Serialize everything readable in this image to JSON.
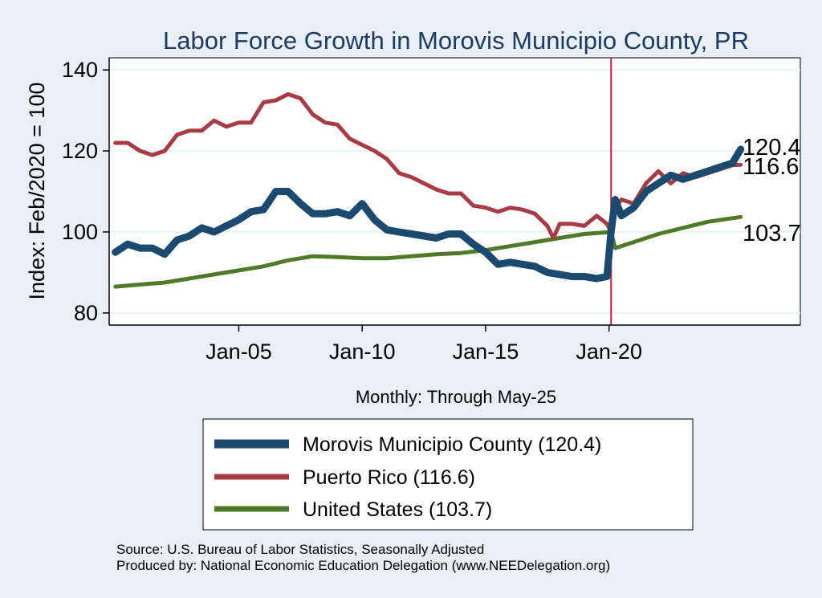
{
  "chart_data": {
    "type": "line",
    "title": "Labor Force Growth in Morovis Municipio  County, PR",
    "xlabel": "Monthly: Through May-25",
    "ylabel": "Index: Feb/2020 = 100",
    "x_start": "2000-01",
    "x_end": "2025-05",
    "xlim": [
      "1999-10",
      "2027-10"
    ],
    "ylim": [
      77,
      143
    ],
    "x_ticks": [
      {
        "date": "2005-01",
        "label": "Jan-05"
      },
      {
        "date": "2010-01",
        "label": "Jan-10"
      },
      {
        "date": "2015-01",
        "label": "Jan-15"
      },
      {
        "date": "2020-01",
        "label": "Jan-20"
      }
    ],
    "y_ticks": [
      80,
      100,
      120,
      140
    ],
    "reference_line": {
      "date": "2020-02",
      "color": "#c0203a"
    },
    "grid": true,
    "legend_placement": "bottom",
    "series": [
      {
        "name": "Morovis Municipio  County (120.4)",
        "end_label": "120.4",
        "color": "#1b4a6e",
        "width": 9,
        "points": [
          [
            "2000-01",
            95
          ],
          [
            "2000-07",
            97
          ],
          [
            "2001-01",
            96
          ],
          [
            "2001-07",
            96
          ],
          [
            "2002-01",
            94.5
          ],
          [
            "2002-07",
            98
          ],
          [
            "2003-01",
            99
          ],
          [
            "2003-07",
            101
          ],
          [
            "2004-01",
            100
          ],
          [
            "2004-07",
            101.5
          ],
          [
            "2005-01",
            103
          ],
          [
            "2005-07",
            105
          ],
          [
            "2006-01",
            105.5
          ],
          [
            "2006-07",
            110
          ],
          [
            "2007-01",
            110
          ],
          [
            "2007-07",
            107
          ],
          [
            "2008-01",
            104.5
          ],
          [
            "2008-07",
            104.5
          ],
          [
            "2009-01",
            105
          ],
          [
            "2009-07",
            104
          ],
          [
            "2010-01",
            107
          ],
          [
            "2010-07",
            103
          ],
          [
            "2011-01",
            100.5
          ],
          [
            "2011-07",
            100
          ],
          [
            "2012-01",
            99.5
          ],
          [
            "2012-07",
            99
          ],
          [
            "2013-01",
            98.5
          ],
          [
            "2013-07",
            99.5
          ],
          [
            "2014-01",
            99.5
          ],
          [
            "2014-07",
            97
          ],
          [
            "2015-01",
            95
          ],
          [
            "2015-07",
            92
          ],
          [
            "2016-01",
            92.5
          ],
          [
            "2016-07",
            92
          ],
          [
            "2017-01",
            91.5
          ],
          [
            "2017-07",
            90
          ],
          [
            "2018-01",
            89.5
          ],
          [
            "2018-07",
            89
          ],
          [
            "2019-01",
            89
          ],
          [
            "2019-07",
            88.5
          ],
          [
            "2019-12",
            89
          ],
          [
            "2020-02",
            100
          ],
          [
            "2020-04",
            108
          ],
          [
            "2020-07",
            104
          ],
          [
            "2021-01",
            106
          ],
          [
            "2021-07",
            110
          ],
          [
            "2022-01",
            112
          ],
          [
            "2022-07",
            114
          ],
          [
            "2023-01",
            113
          ],
          [
            "2023-07",
            114
          ],
          [
            "2024-01",
            115
          ],
          [
            "2024-07",
            116
          ],
          [
            "2025-01",
            117
          ],
          [
            "2025-05",
            120.4
          ]
        ]
      },
      {
        "name": "Puerto Rico (116.6)",
        "end_label": "116.6",
        "color": "#a83c44",
        "width": 5,
        "points": [
          [
            "2000-01",
            122
          ],
          [
            "2000-07",
            122
          ],
          [
            "2001-01",
            120
          ],
          [
            "2001-07",
            119
          ],
          [
            "2002-01",
            120
          ],
          [
            "2002-07",
            124
          ],
          [
            "2003-01",
            125
          ],
          [
            "2003-07",
            125
          ],
          [
            "2004-01",
            127.5
          ],
          [
            "2004-07",
            126
          ],
          [
            "2005-01",
            127
          ],
          [
            "2005-07",
            127
          ],
          [
            "2006-01",
            132
          ],
          [
            "2006-07",
            132.5
          ],
          [
            "2007-01",
            134
          ],
          [
            "2007-07",
            133
          ],
          [
            "2008-01",
            129
          ],
          [
            "2008-07",
            127
          ],
          [
            "2009-01",
            126.5
          ],
          [
            "2009-07",
            123
          ],
          [
            "2010-01",
            121.5
          ],
          [
            "2010-07",
            120
          ],
          [
            "2011-01",
            118
          ],
          [
            "2011-07",
            114.5
          ],
          [
            "2012-01",
            113.5
          ],
          [
            "2012-07",
            112
          ],
          [
            "2013-01",
            110.5
          ],
          [
            "2013-07",
            109.5
          ],
          [
            "2014-01",
            109.5
          ],
          [
            "2014-07",
            106.5
          ],
          [
            "2015-01",
            106
          ],
          [
            "2015-07",
            105
          ],
          [
            "2016-01",
            106
          ],
          [
            "2016-07",
            105.5
          ],
          [
            "2017-01",
            104.5
          ],
          [
            "2017-07",
            101.5
          ],
          [
            "2017-10",
            98.5
          ],
          [
            "2018-01",
            102
          ],
          [
            "2018-07",
            102
          ],
          [
            "2019-01",
            101.5
          ],
          [
            "2019-07",
            104
          ],
          [
            "2019-12",
            102
          ],
          [
            "2020-02",
            100
          ],
          [
            "2020-04",
            106
          ],
          [
            "2020-07",
            108
          ],
          [
            "2021-01",
            107
          ],
          [
            "2021-07",
            112
          ],
          [
            "2022-01",
            115
          ],
          [
            "2022-07",
            112
          ],
          [
            "2023-01",
            114.5
          ],
          [
            "2023-07",
            113.5
          ],
          [
            "2024-01",
            114.5
          ],
          [
            "2024-07",
            115.5
          ],
          [
            "2025-01",
            116.5
          ],
          [
            "2025-05",
            116.6
          ]
        ]
      },
      {
        "name": "United States (103.7)",
        "end_label": "103.7",
        "color": "#4e7a2a",
        "width": 5,
        "points": [
          [
            "2000-01",
            86.5
          ],
          [
            "2001-01",
            87
          ],
          [
            "2002-01",
            87.5
          ],
          [
            "2003-01",
            88.5
          ],
          [
            "2004-01",
            89.5
          ],
          [
            "2005-01",
            90.5
          ],
          [
            "2006-01",
            91.5
          ],
          [
            "2007-01",
            93
          ],
          [
            "2008-01",
            94
          ],
          [
            "2009-01",
            93.8
          ],
          [
            "2010-01",
            93.5
          ],
          [
            "2011-01",
            93.5
          ],
          [
            "2012-01",
            94
          ],
          [
            "2013-01",
            94.5
          ],
          [
            "2014-01",
            94.8
          ],
          [
            "2015-01",
            95.5
          ],
          [
            "2016-01",
            96.5
          ],
          [
            "2017-01",
            97.5
          ],
          [
            "2018-01",
            98.5
          ],
          [
            "2019-01",
            99.5
          ],
          [
            "2020-02",
            100
          ],
          [
            "2020-04",
            96
          ],
          [
            "2021-01",
            97.5
          ],
          [
            "2022-01",
            99.5
          ],
          [
            "2023-01",
            101
          ],
          [
            "2024-01",
            102.5
          ],
          [
            "2025-05",
            103.7
          ]
        ]
      }
    ]
  },
  "footer": {
    "source": "Source: U.S. Bureau of Labor Statistics, Seasonally Adjusted",
    "produced_by": "Produced by: National Economic Education Delegation (www.NEEDelegation.org)"
  }
}
